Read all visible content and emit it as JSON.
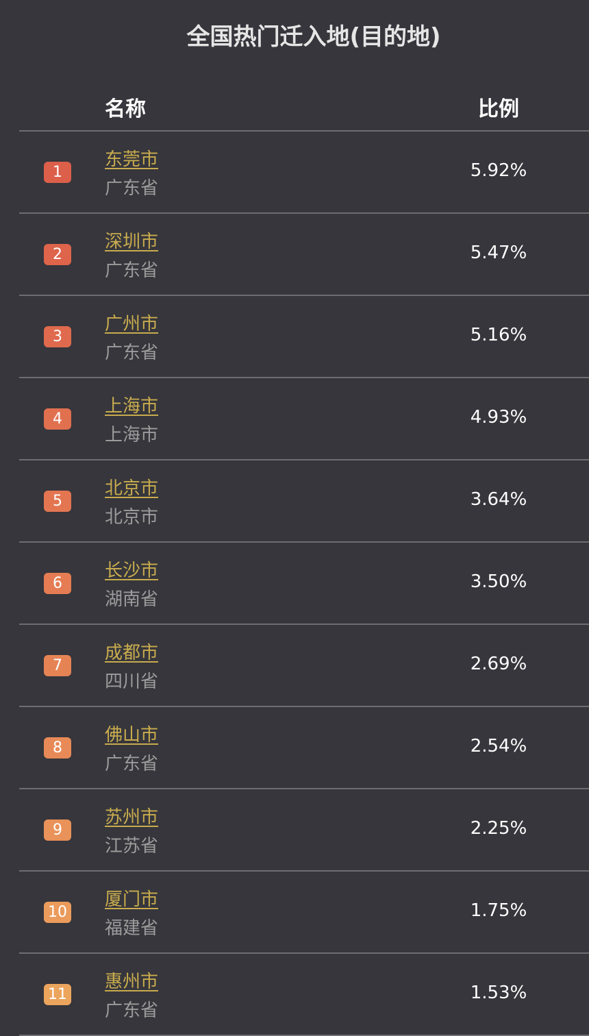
{
  "title": "全国热门迁入地(目的地)",
  "header": {
    "name": "名称",
    "ratio": "比例"
  },
  "rows": [
    {
      "rank": "1",
      "city": "东莞市",
      "province": "广东省",
      "ratio": "5.92%",
      "badge_color": "#dc5f4a"
    },
    {
      "rank": "2",
      "city": "深圳市",
      "province": "广东省",
      "ratio": "5.47%",
      "badge_color": "#de644b"
    },
    {
      "rank": "3",
      "city": "广州市",
      "province": "广东省",
      "ratio": "5.16%",
      "badge_color": "#df6a4d"
    },
    {
      "rank": "4",
      "city": "上海市",
      "province": "上海市",
      "ratio": "4.93%",
      "badge_color": "#e1704f"
    },
    {
      "rank": "5",
      "city": "北京市",
      "province": "北京市",
      "ratio": "3.64%",
      "badge_color": "#e37651"
    },
    {
      "rank": "6",
      "city": "长沙市",
      "province": "湖南省",
      "ratio": "3.50%",
      "badge_color": "#e57c53"
    },
    {
      "rank": "7",
      "city": "成都市",
      "province": "四川省",
      "ratio": "2.69%",
      "badge_color": "#e68355"
    },
    {
      "rank": "8",
      "city": "佛山市",
      "province": "广东省",
      "ratio": "2.54%",
      "badge_color": "#e88a57"
    },
    {
      "rank": "9",
      "city": "苏州市",
      "province": "江苏省",
      "ratio": "2.25%",
      "badge_color": "#e99259"
    },
    {
      "rank": "10",
      "city": "厦门市",
      "province": "福建省",
      "ratio": "1.75%",
      "badge_color": "#eb9b5b"
    },
    {
      "rank": "11",
      "city": "惠州市",
      "province": "广东省",
      "ratio": "1.53%",
      "badge_color": "#eca55d"
    }
  ]
}
